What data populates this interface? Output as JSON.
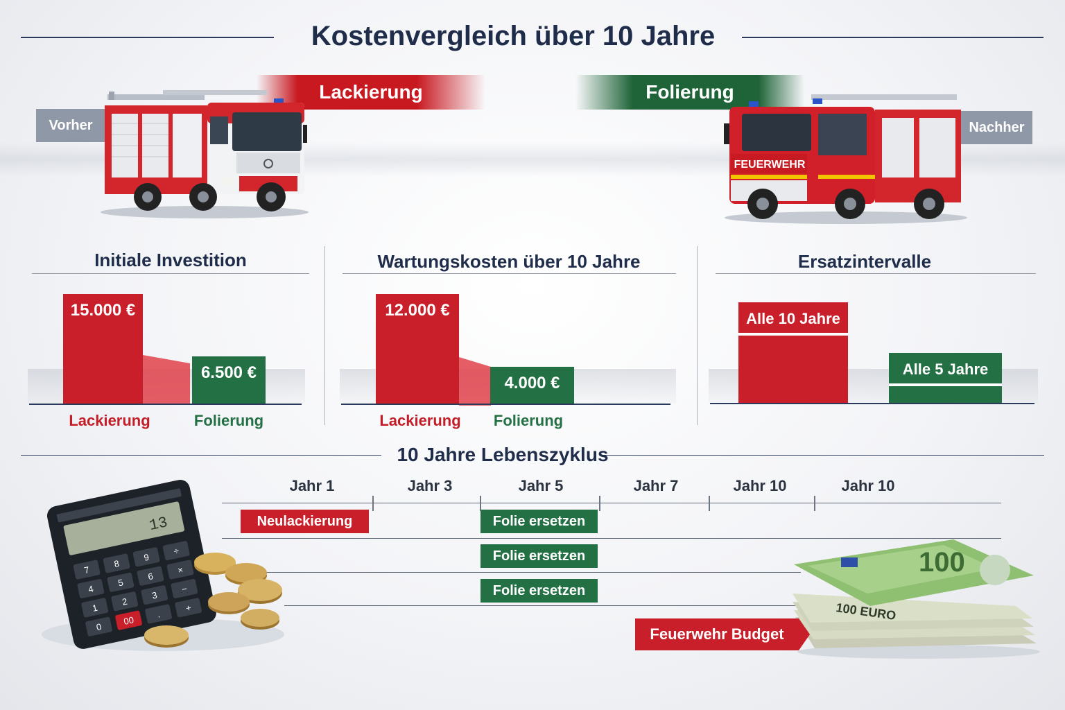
{
  "title": "Kostenvergleich über 10 Jahre",
  "methods": {
    "paint": "Lackierung",
    "wrap": "Folierung"
  },
  "tags": {
    "before": "Vorher",
    "after": "Nachher"
  },
  "truck_right_text": "FEUERWEHR",
  "colors": {
    "red": "#c91f2a",
    "green": "#237045",
    "navy": "#1f2d4a"
  },
  "chart_data": [
    {
      "type": "bar",
      "title": "Initiale Investition",
      "categories": [
        "Lackierung",
        "Folierung"
      ],
      "values": [
        15000,
        6500
      ],
      "data_labels": [
        "15.000 €",
        "6.500 €"
      ],
      "unit": "€",
      "ylim": [
        0,
        15000
      ]
    },
    {
      "type": "bar",
      "title": "Wartungskosten über 10 Jahre",
      "categories": [
        "Lackierung",
        "Folierung"
      ],
      "values": [
        12000,
        4000
      ],
      "data_labels": [
        "12.000 €",
        "4.000 €"
      ],
      "unit": "€",
      "ylim": [
        0,
        12000
      ]
    },
    {
      "type": "bar",
      "title": "Ersatzintervalle",
      "categories": [
        "Lackierung",
        "Folierung"
      ],
      "values": [
        10,
        5
      ],
      "data_labels": [
        "Alle 10 Jahre",
        "Alle 5 Jahre"
      ],
      "unit": "Jahre",
      "ylim": [
        0,
        10
      ]
    }
  ],
  "timeline": {
    "title": "10 Jahre Lebenszyklus",
    "years": [
      "Jahr 1",
      "Jahr 3",
      "Jahr 5",
      "Jahr 7",
      "Jahr 10",
      "Jahr 10"
    ],
    "events": [
      {
        "label": "Neulackierung",
        "kind": "paint"
      },
      {
        "label": "Folie ersetzen",
        "kind": "wrap"
      },
      {
        "label": "Folie ersetzen",
        "kind": "wrap"
      },
      {
        "label": "Folie ersetzen",
        "kind": "wrap"
      }
    ]
  },
  "calculator": {
    "display": "13",
    "keys": [
      "7",
      "8",
      "9",
      "÷",
      "4",
      "5",
      "6",
      "×",
      "1",
      "2",
      "3",
      "−",
      "0",
      "00",
      ".",
      "+"
    ]
  },
  "banknote": {
    "denomination": "100",
    "label": "100 EURO"
  },
  "budget_label": "Feuerwehr Budget"
}
